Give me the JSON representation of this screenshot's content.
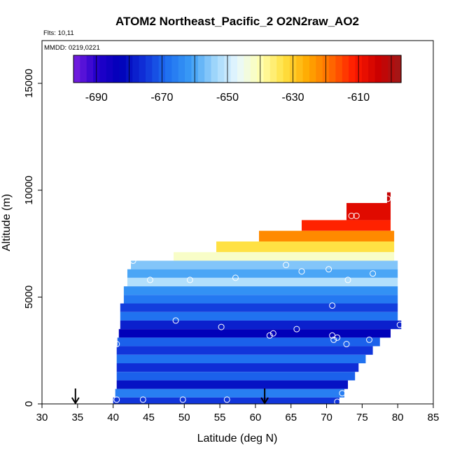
{
  "chart_data": {
    "type": "heatmap",
    "title": "ATOM2 Northeast_Pacific_2 O2N2raw_AO2",
    "annotations": {
      "flights": "Flts: 10,11",
      "dates": "MMDD: 0219,0221"
    },
    "xlabel": "Latitude (deg N)",
    "ylabel": "Altitude (m)",
    "xlim": [
      30,
      85
    ],
    "ylim": [
      0,
      17000
    ],
    "x_ticks": [
      "30",
      "35",
      "40",
      "45",
      "50",
      "55",
      "60",
      "65",
      "70",
      "75",
      "80",
      "85"
    ],
    "y_ticks": [
      "0",
      "5000",
      "10000",
      "15000"
    ],
    "colorbar": {
      "min": -697,
      "max": -597,
      "tick_values": [
        -690,
        -670,
        -650,
        -630,
        -610
      ],
      "tick_labels": [
        "-690",
        "-670",
        "-650",
        "-630",
        "-610"
      ],
      "colors": [
        "#7a1fe0",
        "#2400cc",
        "#0000b8",
        "#1030d8",
        "#1e6ff0",
        "#3a9cf5",
        "#9bd4fa",
        "#e8f8ff",
        "#ffffb0",
        "#ffe040",
        "#ffaa00",
        "#ff6a00",
        "#ff1a00",
        "#cc0000",
        "#a01818"
      ]
    },
    "cells": [
      {
        "y0": 9400,
        "y1": 9900,
        "x0": 78.5,
        "x1": 79,
        "v": -603
      },
      {
        "y0": 8600,
        "y1": 9400,
        "x0": 72.8,
        "x1": 79,
        "v": -607
      },
      {
        "y0": 8100,
        "y1": 8600,
        "x0": 66.5,
        "x1": 79,
        "v": -612
      },
      {
        "y0": 7600,
        "y1": 8100,
        "x0": 60.5,
        "x1": 79.5,
        "v": -622
      },
      {
        "y0": 7100,
        "y1": 7600,
        "x0": 54.5,
        "x1": 79.5,
        "v": -633
      },
      {
        "y0": 6700,
        "y1": 7100,
        "x0": 48.5,
        "x1": 79.5,
        "v": -642
      },
      {
        "y0": 6300,
        "y1": 6700,
        "x0": 42.5,
        "x1": 80,
        "v": -656
      },
      {
        "y0": 5900,
        "y1": 6300,
        "x0": 42,
        "x1": 80,
        "v": -660
      },
      {
        "y0": 5500,
        "y1": 5900,
        "x0": 42,
        "x1": 80,
        "v": -652
      },
      {
        "y0": 5100,
        "y1": 5500,
        "x0": 41.5,
        "x1": 80,
        "v": -663
      },
      {
        "y0": 4700,
        "y1": 5100,
        "x0": 41.5,
        "x1": 80,
        "v": -667
      },
      {
        "y0": 4300,
        "y1": 4700,
        "x0": 41,
        "x1": 80,
        "v": -674
      },
      {
        "y0": 3900,
        "y1": 4300,
        "x0": 41,
        "x1": 80,
        "v": -668
      },
      {
        "y0": 3500,
        "y1": 3900,
        "x0": 41,
        "x1": 80.5,
        "v": -678
      },
      {
        "y0": 3100,
        "y1": 3500,
        "x0": 40.8,
        "x1": 79,
        "v": -683
      },
      {
        "y0": 2700,
        "y1": 3100,
        "x0": 40.6,
        "x1": 77.5,
        "v": -670
      },
      {
        "y0": 2300,
        "y1": 2700,
        "x0": 40.5,
        "x1": 76.5,
        "v": -675
      },
      {
        "y0": 1900,
        "y1": 2300,
        "x0": 40.5,
        "x1": 75.5,
        "v": -668
      },
      {
        "y0": 1500,
        "y1": 1900,
        "x0": 40.5,
        "x1": 74.5,
        "v": -676
      },
      {
        "y0": 1100,
        "y1": 1500,
        "x0": 40.5,
        "x1": 74,
        "v": -670
      },
      {
        "y0": 700,
        "y1": 1100,
        "x0": 40.5,
        "x1": 73,
        "v": -680
      },
      {
        "y0": 300,
        "y1": 700,
        "x0": 40.3,
        "x1": 72.5,
        "v": -666
      },
      {
        "y0": 0,
        "y1": 300,
        "x0": 40,
        "x1": 71.8,
        "v": -675
      }
    ],
    "points": [
      {
        "x": 78.6,
        "y": 9600
      },
      {
        "x": 73.5,
        "y": 8800
      },
      {
        "x": 74.2,
        "y": 8800
      },
      {
        "x": 42.8,
        "y": 6700
      },
      {
        "x": 64.3,
        "y": 6500
      },
      {
        "x": 66.5,
        "y": 6200
      },
      {
        "x": 70.3,
        "y": 6300
      },
      {
        "x": 76.5,
        "y": 6100
      },
      {
        "x": 45.2,
        "y": 5800
      },
      {
        "x": 50.8,
        "y": 5800
      },
      {
        "x": 57.2,
        "y": 5900
      },
      {
        "x": 73,
        "y": 5800
      },
      {
        "x": 70.8,
        "y": 4600
      },
      {
        "x": 48.8,
        "y": 3900
      },
      {
        "x": 55.2,
        "y": 3600
      },
      {
        "x": 65.8,
        "y": 3500
      },
      {
        "x": 80.3,
        "y": 3700
      },
      {
        "x": 62,
        "y": 3200
      },
      {
        "x": 62.5,
        "y": 3300
      },
      {
        "x": 70.8,
        "y": 3200
      },
      {
        "x": 71.5,
        "y": 3100
      },
      {
        "x": 71,
        "y": 3000
      },
      {
        "x": 76,
        "y": 3000
      },
      {
        "x": 72.8,
        "y": 2800
      },
      {
        "x": 40.5,
        "y": 2800
      },
      {
        "x": 72.2,
        "y": 500
      },
      {
        "x": 40.5,
        "y": 200
      },
      {
        "x": 44.2,
        "y": 200
      },
      {
        "x": 49.8,
        "y": 200
      },
      {
        "x": 56,
        "y": 200
      },
      {
        "x": 71.5,
        "y": 100
      }
    ],
    "arrows": [
      {
        "x": 34.7
      },
      {
        "x": 61.3
      }
    ]
  }
}
